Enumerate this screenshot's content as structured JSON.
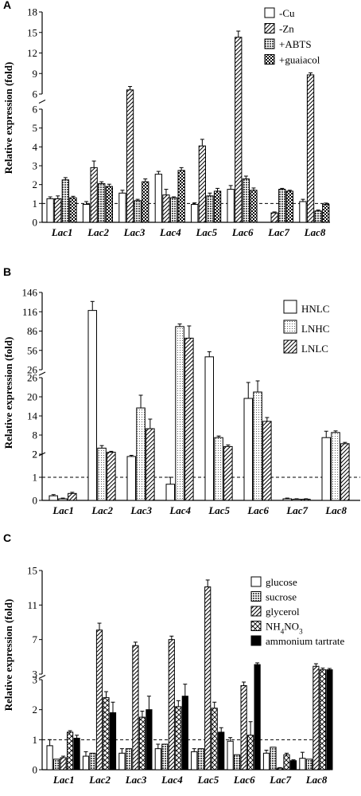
{
  "panels": [
    {
      "letter": "A",
      "ylabel": "Relative expression (fold)",
      "lower_ticks": [
        "0",
        "1",
        "2",
        "3",
        "4",
        "5",
        "6"
      ],
      "upper_ticks": [
        "6",
        "9",
        "12",
        "15",
        "18"
      ],
      "ref_line": 1,
      "categories": [
        "Lac1",
        "Lac2",
        "Lac3",
        "Lac4",
        "Lac5",
        "Lac6",
        "Lac7",
        "Lac8"
      ],
      "series_names": [
        "-Cu",
        "-Zn",
        "+ABTS",
        "+guaiacol"
      ],
      "series_sub": [
        null,
        null,
        null,
        null
      ],
      "patterns": [
        "white",
        "diag",
        "grid",
        "check"
      ]
    },
    {
      "letter": "B",
      "ylabel": "Relative expression (fold)",
      "lower_ticks": [
        "0",
        "1",
        "2"
      ],
      "mid_ticks": [
        "2",
        "8",
        "14",
        "20",
        "26"
      ],
      "upper_ticks": [
        "26",
        "56",
        "86",
        "116",
        "146"
      ],
      "ref_line": 1,
      "categories": [
        "Lac1",
        "Lac2",
        "Lac3",
        "Lac4",
        "Lac5",
        "Lac6",
        "Lac7",
        "Lac8"
      ],
      "series_names": [
        "HNLC",
        "LNHC",
        "LNLC"
      ],
      "series_sub": [
        null,
        null,
        null
      ],
      "patterns": [
        "white",
        "dots",
        "diag"
      ]
    },
    {
      "letter": "C",
      "ylabel": "Relative expression (fold)",
      "lower_ticks": [
        "0",
        "1",
        "2",
        "3"
      ],
      "upper_ticks": [
        "3",
        "7",
        "11",
        "15"
      ],
      "ref_line": 1,
      "categories": [
        "Lac1",
        "Lac2",
        "Lac3",
        "Lac4",
        "Lac5",
        "Lac6",
        "Lac7",
        "Lac8"
      ],
      "series_names": [
        "glucose",
        "sucrose",
        "glycerol",
        "NH4NO3",
        "ammonium tartrate"
      ],
      "series_sub": [
        null,
        null,
        null,
        {
          "pre": "NH",
          "sub": "4",
          "post": "NO",
          "sub2": "3"
        },
        null
      ],
      "patterns": [
        "white",
        "grid",
        "diag",
        "cross",
        "black"
      ]
    }
  ],
  "chart_data": [
    {
      "type": "bar",
      "panel": "A",
      "categories": [
        "Lac1",
        "Lac2",
        "Lac3",
        "Lac4",
        "Lac5",
        "Lac6",
        "Lac7",
        "Lac8"
      ],
      "ylabel": "Relative expression (fold)",
      "y_axis": "broken: 0–6 (lower), 6–18 (upper)",
      "reference_line": 1,
      "legend_position": "top-right",
      "series": [
        {
          "name": "-Cu",
          "values": [
            1.25,
            0.95,
            1.55,
            2.55,
            0.95,
            1.75,
            0.0,
            1.1
          ],
          "errors": [
            0.1,
            0.15,
            0.15,
            0.15,
            0.08,
            0.2,
            0,
            0.12
          ]
        },
        {
          "name": "-Zn",
          "values": [
            1.25,
            2.9,
            6.6,
            1.45,
            4.05,
            14.3,
            0.5,
            8.8
          ],
          "errors": [
            0.15,
            0.35,
            0.5,
            0.3,
            0.35,
            0.9,
            0.05,
            0.3
          ]
        },
        {
          "name": "+ABTS",
          "values": [
            2.25,
            2.05,
            1.15,
            1.3,
            1.4,
            2.3,
            1.75,
            0.6
          ],
          "errors": [
            0.12,
            0.1,
            0.07,
            0.05,
            0.15,
            0.15,
            0.05,
            0.05
          ]
        },
        {
          "name": "+guaiacol",
          "values": [
            1.3,
            1.9,
            2.15,
            2.75,
            1.65,
            1.7,
            1.65,
            0.95
          ],
          "errors": [
            0.08,
            0.12,
            0.15,
            0.15,
            0.15,
            0.12,
            0.05,
            0.07
          ]
        }
      ]
    },
    {
      "type": "bar",
      "panel": "B",
      "categories": [
        "Lac1",
        "Lac2",
        "Lac3",
        "Lac4",
        "Lac5",
        "Lac6",
        "Lac7",
        "Lac8"
      ],
      "ylabel": "Relative expression (fold)",
      "y_axis": "broken: 0–2 (lower), 2–26 (middle), 26–146 (upper)",
      "reference_line": 1,
      "legend_position": "top-right",
      "series": [
        {
          "name": "HNLC",
          "values": [
            0.2,
            118,
            1.9,
            0.7,
            46,
            19.5,
            0.07,
            7.2
          ],
          "errors": [
            0.05,
            14,
            0.05,
            0.3,
            8,
            5,
            0.03,
            2
          ]
        },
        {
          "name": "LNHC",
          "values": [
            0.07,
            3.9,
            16.5,
            93,
            7.2,
            21.5,
            0.05,
            8.8
          ],
          "errors": [
            0.03,
            0.8,
            4,
            4,
            0.5,
            3.5,
            0.02,
            0.5
          ]
        },
        {
          "name": "LNLC",
          "values": [
            0.3,
            2.6,
            10,
            75,
            4.4,
            12.3,
            0.05,
            5.3
          ],
          "errors": [
            0.05,
            0.3,
            3,
            19,
            0.5,
            1.2,
            0.02,
            0.4
          ]
        }
      ]
    },
    {
      "type": "bar",
      "panel": "C",
      "categories": [
        "Lac1",
        "Lac2",
        "Lac3",
        "Lac4",
        "Lac5",
        "Lac6",
        "Lac7",
        "Lac8"
      ],
      "ylabel": "Relative expression (fold)",
      "y_axis": "broken: 0–3 (lower), 3–15 (upper)",
      "reference_line": 1,
      "legend_position": "top-right",
      "series": [
        {
          "name": "glucose",
          "values": [
            0.8,
            0.45,
            0.55,
            0.7,
            0.6,
            0.95,
            0.55,
            0.38
          ],
          "errors": [
            0.2,
            0.15,
            0.15,
            0.15,
            0.1,
            0.12,
            0.1,
            0.2
          ]
        },
        {
          "name": "sucrose",
          "values": [
            0.35,
            0.55,
            0.7,
            0.85,
            0.7,
            0.5,
            0.75,
            0.35
          ],
          " errors": [
            0.03,
            0.2,
            0.15,
            0.1,
            0.05,
            0.05,
            0.03,
            0.03
          ]
        },
        {
          "name": "glycerol",
          "values": [
            0.4,
            8.1,
            6.3,
            7.0,
            13.1,
            2.8,
            0.05,
            3.9
          ],
          "errors": [
            0.05,
            0.8,
            0.4,
            0.4,
            0.8,
            0.12,
            0.02,
            0.3
          ]
        },
        {
          "name": "NH4NO3",
          "values": [
            1.25,
            2.4,
            1.75,
            2.1,
            2.05,
            1.15,
            0.5,
            3.5
          ],
          "errors": [
            0.05,
            0.2,
            0.2,
            0.2,
            0.2,
            0.45,
            0.05,
            0.2
          ]
        },
        {
          "name": "ammonium tartrate",
          "values": [
            1.05,
            1.9,
            2.0,
            2.45,
            1.25,
            4.1,
            0.3,
            3.5
          ],
          "errors": [
            0.1,
            0.35,
            0.45,
            0.4,
            0.15,
            0.2,
            0.03,
            0.15
          ]
        }
      ]
    }
  ]
}
